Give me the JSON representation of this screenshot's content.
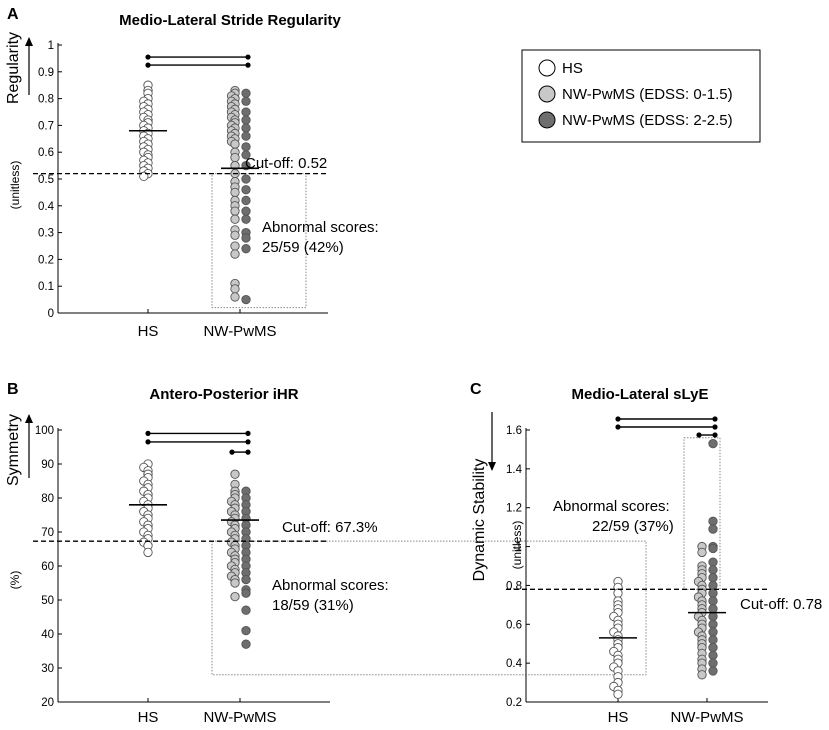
{
  "legend": {
    "items": [
      {
        "label": "HS",
        "color": "#ffffff"
      },
      {
        "label": "NW-PwMS (EDSS: 0-1.5)",
        "color": "#c8c8c8"
      },
      {
        "label": "NW-PwMS (EDSS: 2-2.5)",
        "color": "#6e6e6e"
      }
    ]
  },
  "chart_data": [
    {
      "panel": "A",
      "type": "scatter",
      "title": "Medio-Lateral Stride Regularity",
      "ylabel": "Regularity",
      "yunit": "(unitless)",
      "categories": [
        "HS",
        "NW-PwMS"
      ],
      "ylim": [
        0,
        1
      ],
      "yticks": [
        0,
        0.1,
        0.2,
        0.3,
        0.4,
        0.5,
        0.6,
        0.7,
        0.8,
        0.9,
        1
      ],
      "arrow": "up",
      "cutoff": {
        "value": 0.52,
        "label": "Cut-off: 0.52"
      },
      "abnormal": {
        "line1": "Abnormal scores:",
        "line2": "25/59 (42%)",
        "range": [
          0.02,
          0.52
        ]
      },
      "means": {
        "HS": 0.68,
        "NW-PwMS": 0.54
      },
      "brackets": [
        0.955,
        0.925
      ],
      "series": [
        {
          "name": "HS",
          "group": 0,
          "color": "#ffffff",
          "values": [
            0.85,
            0.83,
            0.82,
            0.8,
            0.79,
            0.78,
            0.77,
            0.76,
            0.75,
            0.74,
            0.73,
            0.72,
            0.71,
            0.7,
            0.69,
            0.68,
            0.67,
            0.66,
            0.65,
            0.64,
            0.63,
            0.62,
            0.61,
            0.6,
            0.59,
            0.58,
            0.57,
            0.56,
            0.55,
            0.54,
            0.53,
            0.52,
            0.51
          ]
        },
        {
          "name": "NW-PwMS (EDSS: 0-1.5)",
          "group": 1,
          "color": "#c8c8c8",
          "values": [
            0.83,
            0.82,
            0.81,
            0.8,
            0.79,
            0.78,
            0.77,
            0.76,
            0.75,
            0.74,
            0.73,
            0.72,
            0.71,
            0.7,
            0.69,
            0.68,
            0.67,
            0.66,
            0.65,
            0.64,
            0.63,
            0.6,
            0.58,
            0.55,
            0.52,
            0.49,
            0.47,
            0.45,
            0.42,
            0.4,
            0.38,
            0.35,
            0.31,
            0.29,
            0.25,
            0.22,
            0.11,
            0.09,
            0.06
          ]
        },
        {
          "name": "NW-PwMS (EDSS: 2-2.5)",
          "group": 1,
          "color": "#6e6e6e",
          "values": [
            0.82,
            0.79,
            0.75,
            0.72,
            0.69,
            0.66,
            0.62,
            0.59,
            0.55,
            0.5,
            0.46,
            0.42,
            0.38,
            0.35,
            0.3,
            0.28,
            0.24,
            0.05
          ]
        }
      ]
    },
    {
      "panel": "B",
      "type": "scatter",
      "title": "Antero-Posterior iHR",
      "ylabel": "Symmetry",
      "yunit": "(%)",
      "categories": [
        "HS",
        "NW-PwMS"
      ],
      "ylim": [
        20,
        100
      ],
      "yticks": [
        20,
        30,
        40,
        50,
        60,
        70,
        80,
        90,
        100
      ],
      "arrow": "up",
      "cutoff": {
        "value": 67.3,
        "label": "Cut-off: 67.3%"
      },
      "abnormal": {
        "line1": "Abnormal scores:",
        "line2": "18/59 (31%)",
        "range": [
          28,
          67.3
        ]
      },
      "means": {
        "HS": 78,
        "NW-PwMS": 73.5
      },
      "brackets": [
        99,
        96.5,
        93.5
      ],
      "series": [
        {
          "name": "HS",
          "group": 0,
          "color": "#ffffff",
          "values": [
            90,
            89,
            88,
            87,
            86,
            85,
            84,
            83,
            82,
            81,
            80,
            79,
            78,
            77,
            76,
            75,
            74,
            73,
            72,
            71,
            70,
            69,
            68,
            67,
            66,
            64
          ]
        },
        {
          "name": "NW-PwMS (EDSS: 0-1.5)",
          "group": 1,
          "color": "#c8c8c8",
          "values": [
            87,
            84,
            82,
            81,
            80,
            79,
            78,
            77,
            76,
            75,
            74,
            73,
            72,
            71,
            70,
            69,
            68,
            67,
            66,
            65,
            64,
            63,
            62,
            61,
            60,
            59,
            58,
            57,
            56,
            55,
            51
          ]
        },
        {
          "name": "NW-PwMS (EDSS: 2-2.5)",
          "group": 1,
          "color": "#6e6e6e",
          "values": [
            82,
            80,
            78,
            76,
            74,
            72,
            70,
            68,
            66,
            64,
            62,
            60,
            58,
            56,
            53,
            52,
            47,
            41,
            37
          ]
        }
      ]
    },
    {
      "panel": "C",
      "type": "scatter",
      "title": "Medio-Lateral sLyE",
      "ylabel": "Dynamic Stability",
      "yunit": "(unitless)",
      "categories": [
        "HS",
        "NW-PwMS"
      ],
      "ylim": [
        0.2,
        1.6
      ],
      "yticks": [
        0.2,
        0.4,
        0.6,
        0.8,
        1,
        1.2,
        1.4,
        1.6
      ],
      "arrow": "down",
      "cutoff": {
        "value": 0.78,
        "label": "Cut-off: 0.78"
      },
      "abnormal": {
        "line1": "Abnormal scores:",
        "line2": "22/59 (37%)",
        "range": [
          0.78,
          1.56
        ]
      },
      "means": {
        "HS": 0.53,
        "NW-PwMS": 0.66
      },
      "brackets": [
        1.65,
        1.62,
        1.58
      ],
      "series": [
        {
          "name": "HS",
          "group": 0,
          "color": "#ffffff",
          "values": [
            0.82,
            0.79,
            0.76,
            0.72,
            0.7,
            0.68,
            0.66,
            0.64,
            0.62,
            0.6,
            0.58,
            0.56,
            0.54,
            0.52,
            0.5,
            0.48,
            0.46,
            0.44,
            0.42,
            0.4,
            0.38,
            0.36,
            0.33,
            0.3,
            0.28,
            0.26,
            0.24
          ]
        },
        {
          "name": "NW-PwMS (EDSS: 0-1.5)",
          "group": 1,
          "color": "#c8c8c8",
          "values": [
            1.0,
            0.97,
            0.9,
            0.88,
            0.86,
            0.84,
            0.82,
            0.8,
            0.78,
            0.76,
            0.74,
            0.72,
            0.7,
            0.68,
            0.66,
            0.64,
            0.62,
            0.6,
            0.58,
            0.56,
            0.54,
            0.52,
            0.5,
            0.48,
            0.45,
            0.42,
            0.4,
            0.37,
            0.34
          ]
        },
        {
          "name": "NW-PwMS (EDSS: 2-2.5)",
          "group": 1,
          "color": "#6e6e6e",
          "values": [
            1.53,
            1.13,
            1.09,
            1.0,
            0.99,
            0.92,
            0.88,
            0.84,
            0.8,
            0.76,
            0.72,
            0.68,
            0.64,
            0.6,
            0.56,
            0.52,
            0.48,
            0.44,
            0.4,
            0.36
          ]
        }
      ]
    }
  ]
}
